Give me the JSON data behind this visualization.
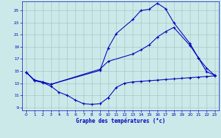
{
  "title": "Graphe des températures (°c)",
  "bg_color": "#cce9e9",
  "grid_color": "#aacccc",
  "line_color": "#0000bb",
  "xlim": [
    -0.5,
    23.5
  ],
  "ylim": [
    8.5,
    26.5
  ],
  "yticks": [
    9,
    11,
    13,
    15,
    17,
    19,
    21,
    23,
    25
  ],
  "xticks": [
    0,
    1,
    2,
    3,
    4,
    5,
    6,
    7,
    8,
    9,
    10,
    11,
    12,
    13,
    14,
    15,
    16,
    17,
    18,
    19,
    20,
    21,
    22,
    23
  ],
  "curve1_x": [
    0,
    1,
    2,
    3,
    9,
    10,
    11,
    13,
    14,
    15,
    16,
    17,
    18,
    20,
    21,
    22,
    23
  ],
  "curve1_y": [
    14.8,
    13.5,
    13.2,
    12.8,
    15.1,
    18.8,
    21.2,
    23.5,
    25.0,
    25.2,
    26.2,
    25.3,
    23.0,
    19.5,
    17.2,
    15.5,
    14.3
  ],
  "curve2_x": [
    0,
    1,
    2,
    3,
    9,
    10,
    13,
    14,
    15,
    16,
    17,
    18,
    20,
    21,
    22,
    23
  ],
  "curve2_y": [
    14.8,
    13.5,
    13.2,
    12.8,
    15.3,
    16.6,
    17.8,
    18.5,
    19.3,
    20.6,
    21.5,
    22.2,
    19.2,
    17.2,
    14.9,
    14.3
  ],
  "curve3_x": [
    0,
    1,
    2,
    3,
    4,
    5,
    6,
    7,
    8,
    9,
    10,
    11,
    12,
    13,
    14,
    15,
    16,
    17,
    18,
    19,
    20,
    21,
    22,
    23
  ],
  "curve3_y": [
    14.8,
    13.4,
    13.1,
    12.5,
    11.5,
    11.0,
    10.2,
    9.6,
    9.5,
    9.6,
    10.6,
    12.3,
    13.0,
    13.2,
    13.3,
    13.4,
    13.5,
    13.6,
    13.7,
    13.8,
    13.9,
    14.0,
    14.1,
    14.2
  ]
}
